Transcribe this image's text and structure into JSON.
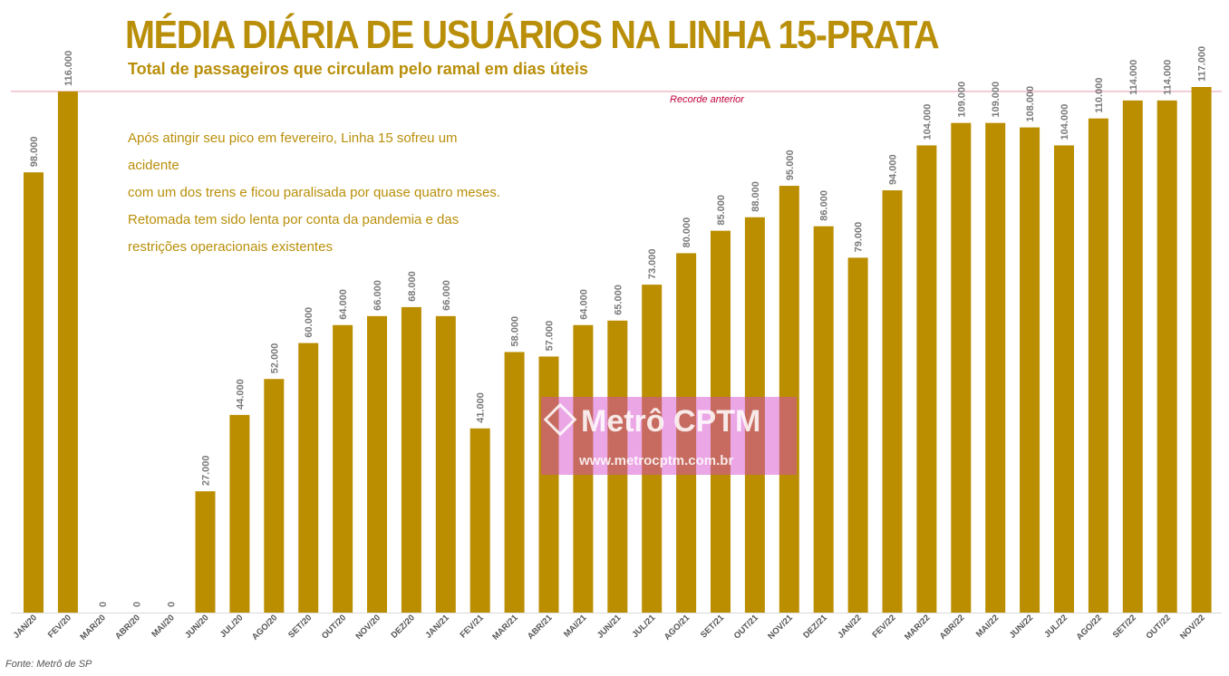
{
  "chart_data": {
    "type": "bar",
    "title": "MÉDIA DIÁRIA DE USUÁRIOS NA LINHA 15-PRATA",
    "subtitle": "Total de passageiros que circulam pelo ramal em dias úteis",
    "categories": [
      "JAN/20",
      "FEV/20",
      "MAR/20",
      "ABR/20",
      "MAI/20",
      "JUN/20",
      "JUL/20",
      "AGO/20",
      "SET/20",
      "OUT/20",
      "NOV/20",
      "DEZ/20",
      "JAN/21",
      "FEV/21",
      "MAR/21",
      "ABR/21",
      "MAI/21",
      "JUN/21",
      "JUL/21",
      "AGO/21",
      "SET/21",
      "OUT/21",
      "NOV/21",
      "DEZ/21",
      "JAN/22",
      "FEV/22",
      "MAR/22",
      "ABR/22",
      "MAI/22",
      "JUN/22",
      "JUL/22",
      "AGO/22",
      "SET/22",
      "OUT/22",
      "NOV/22"
    ],
    "values": [
      98000,
      116000,
      0,
      0,
      0,
      27000,
      44000,
      52000,
      60000,
      64000,
      66000,
      68000,
      66000,
      41000,
      58000,
      57000,
      64000,
      65000,
      73000,
      80000,
      85000,
      88000,
      95000,
      86000,
      79000,
      94000,
      104000,
      109000,
      109000,
      108000,
      104000,
      110000,
      114000,
      114000,
      117000
    ],
    "value_labels": [
      "98.000",
      "116.000",
      "0",
      "0",
      "0",
      "27.000",
      "44.000",
      "52.000",
      "60.000",
      "64.000",
      "66.000",
      "68.000",
      "66.000",
      "41.000",
      "58.000",
      "57.000",
      "64.000",
      "65.000",
      "73.000",
      "80.000",
      "85.000",
      "88.000",
      "95.000",
      "86.000",
      "79.000",
      "94.000",
      "104.000",
      "109.000",
      "109.000",
      "108.000",
      "104.000",
      "110.000",
      "114.000",
      "114.000",
      "117.000"
    ],
    "ylim": [
      0,
      117000
    ],
    "reference_line": {
      "value": 116000,
      "label": "Recorde anterior"
    },
    "grid": false,
    "bar_color": "#bb8e00",
    "reference_color": "#e8a7b4"
  },
  "annotation": [
    "Após atingir seu pico em fevereiro, Linha 15 sofreu um acidente",
    "com um dos trens e ficou paralisada por quase quatro meses.",
    "Retomada tem sido lenta por conta da pandemia e das",
    "restrições operacionais existentes"
  ],
  "source": "Fonte: Metrô de SP",
  "watermark": {
    "name": "Metrô CPTM",
    "url": "www.metrocptm.com.br",
    "color": "#d646c8"
  }
}
